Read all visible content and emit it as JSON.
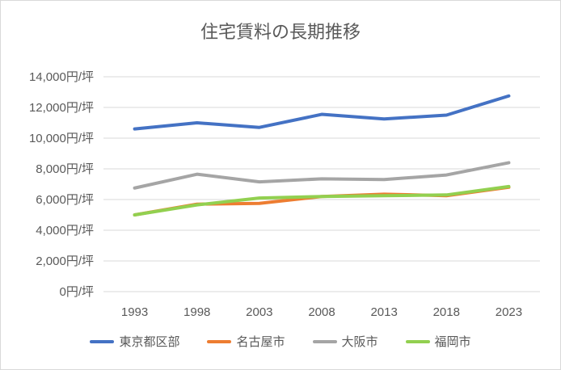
{
  "chart_data": {
    "type": "line",
    "title": "住宅賃料の長期推移",
    "categories": [
      "1993",
      "1998",
      "2003",
      "2008",
      "2013",
      "2018",
      "2023"
    ],
    "y_ticks": [
      "0円/坪",
      "2,000円/坪",
      "4,000円/坪",
      "6,000円/坪",
      "8,000円/坪",
      "10,000円/坪",
      "12,000円/坪",
      "14,000円/坪"
    ],
    "ylim": [
      0,
      14000
    ],
    "grid": true,
    "legend_position": "bottom",
    "series": [
      {
        "name": "東京都区部",
        "color": "#4472c4",
        "values": [
          10600,
          11000,
          10700,
          11550,
          11250,
          11500,
          12750
        ]
      },
      {
        "name": "名古屋市",
        "color": "#ed7d31",
        "values": [
          5000,
          5700,
          5750,
          6200,
          6350,
          6250,
          6800
        ]
      },
      {
        "name": "大阪市",
        "color": "#a5a5a5",
        "values": [
          6750,
          7650,
          7150,
          7350,
          7300,
          7600,
          8400
        ]
      },
      {
        "name": "福岡市",
        "color": "#92d050",
        "values": [
          5000,
          5650,
          6100,
          6200,
          6250,
          6300,
          6850
        ]
      }
    ]
  }
}
